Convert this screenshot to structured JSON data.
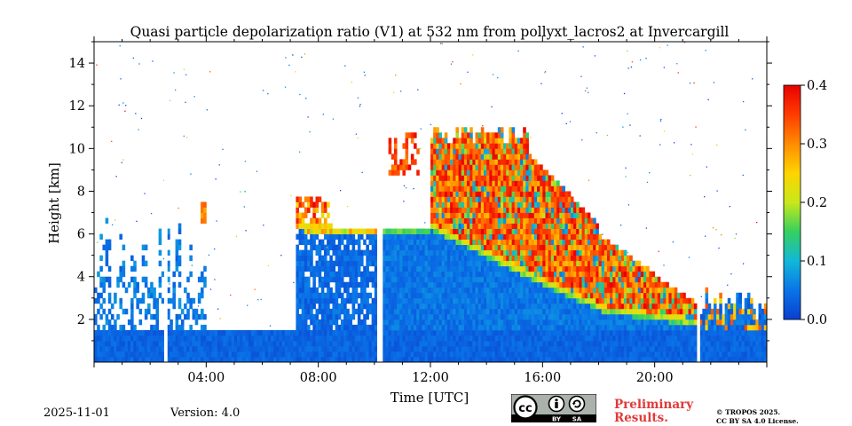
{
  "chart_data": {
    "type": "heatmap",
    "title": "Quasi particle depolarization ratio (V1) at 532 nm from pollyxt_lacros2 at Invercargill",
    "xlabel": "Time [UTC]",
    "ylabel": "Height [km]",
    "x_range_hours": [
      0,
      24
    ],
    "y_range_km": [
      0,
      15
    ],
    "x_ticks": [
      {
        "value": 4,
        "label": "04:00"
      },
      {
        "value": 8,
        "label": "08:00"
      },
      {
        "value": 12,
        "label": "12:00"
      },
      {
        "value": 16,
        "label": "16:00"
      },
      {
        "value": 20,
        "label": "20:00"
      }
    ],
    "y_ticks": [
      {
        "value": 2,
        "label": "2"
      },
      {
        "value": 4,
        "label": "4"
      },
      {
        "value": 6,
        "label": "6"
      },
      {
        "value": 8,
        "label": "8"
      },
      {
        "value": 10,
        "label": "10"
      },
      {
        "value": 12,
        "label": "12"
      },
      {
        "value": 14,
        "label": "14"
      }
    ],
    "colorbar": {
      "min": 0.0,
      "max": 0.4,
      "ticks": [
        {
          "value": 0.0,
          "label": "0.0"
        },
        {
          "value": 0.1,
          "label": "0.1"
        },
        {
          "value": 0.2,
          "label": "0.2"
        },
        {
          "value": 0.3,
          "label": "0.3"
        },
        {
          "value": 0.4,
          "label": "0.4"
        }
      ],
      "colormap": [
        "#0a3fd0",
        "#0a74e8",
        "#11b8d8",
        "#36d060",
        "#c8e81a",
        "#ffd400",
        "#ff8c00",
        "#ff3c00",
        "#e80000"
      ]
    },
    "data_gaps_hours": [
      [
        2.5,
        2.62
      ],
      [
        10.1,
        10.25
      ],
      [
        21.52,
        21.62
      ]
    ],
    "features": [
      {
        "name": "boundary layer",
        "start_h": 0,
        "end_h": 24,
        "top_km": 1.5,
        "value": 0.02
      },
      {
        "name": "low cloud / precipitation",
        "start_h": 7.2,
        "end_h": 10.1,
        "top_km": 6.5,
        "value": 0.03
      },
      {
        "name": "cirrus cloud",
        "start_h": 11.9,
        "end_h": 21.4,
        "base_km": [
          6.2,
          2.0
        ],
        "top_km": [
          11.5,
          4.0
        ],
        "value": 0.32
      },
      {
        "name": "thin layer 04:00",
        "start_h": 3.8,
        "end_h": 4.0,
        "base_km": 6.4,
        "top_km": 7.5,
        "value": 0.3
      }
    ]
  },
  "footer": {
    "date": "2025-11-01",
    "version": "Version: 4.0",
    "preliminary_line1": "Preliminary",
    "preliminary_line2": "Results.",
    "copyright_line1": "© TROPOS 2025.",
    "copyright_line2": "CC BY SA 4.0 License.",
    "license_icon": "cc-by-sa-icon",
    "license_by": "BY",
    "license_sa": "SA"
  }
}
